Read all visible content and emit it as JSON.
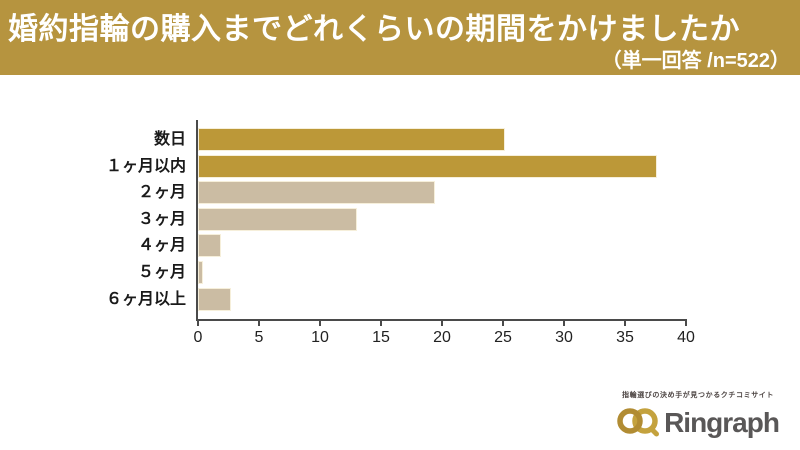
{
  "header": {
    "title": "婚約指輪の購入までどれくらいの期間をかけましたか",
    "subtitle": "（単一回答 /n=522）",
    "bg_color": "#B6943F",
    "text_color": "#FFFFFF"
  },
  "chart_data": {
    "type": "bar",
    "orientation": "horizontal",
    "title": "婚約指輪の購入までどれくらいの期間をかけましたか",
    "subtitle": "（単一回答 /n=522）",
    "categories": [
      "数日",
      "１ヶ月以内",
      "２ヶ月",
      "３ヶ月",
      "４ヶ月",
      "５ヶ月",
      "６ヶ月以上"
    ],
    "values": [
      25.2,
      37.6,
      19.4,
      13.0,
      1.9,
      0.4,
      2.7
    ],
    "unit": "%",
    "xlabel": "",
    "ylabel": "",
    "xlim": [
      0,
      40
    ],
    "xticks": [
      0,
      5,
      10,
      15,
      20,
      25,
      30,
      35,
      40
    ],
    "grid": false,
    "legend": false,
    "bar_colors": [
      "#BC9838",
      "#BC9838",
      "#CBBCA3",
      "#CBBCA3",
      "#CBBCA3",
      "#CBBCA3",
      "#CBBCA3"
    ],
    "bar_border_color": "#F6EFDA",
    "axis_color": "#4A4A4A"
  },
  "logo": {
    "tagline": "指輪選びの決め手が見つかるクチコミサイト",
    "brand": "Ringraph",
    "brand_color": "#595757",
    "ring_left_color": "#B18C33",
    "ring_right_color": "#C4A23E"
  }
}
